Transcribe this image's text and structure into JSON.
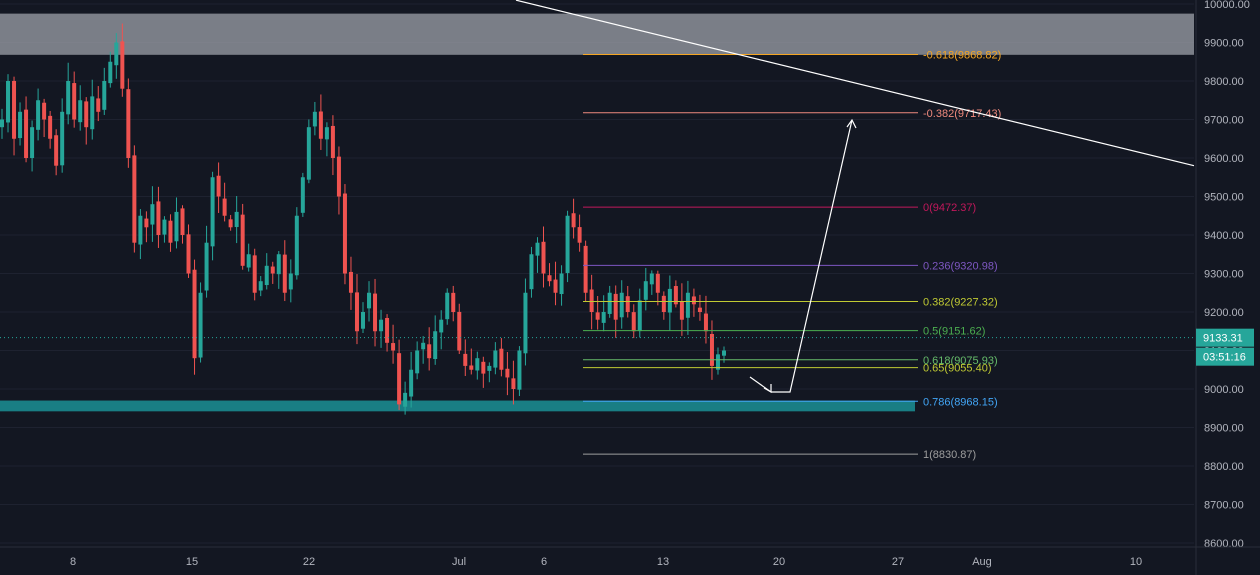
{
  "chart_data": {
    "type": "candlestick",
    "title": "",
    "ylim": [
      8600,
      10000
    ],
    "y_ticks": [
      "10000.00",
      "9900.00",
      "9800.00",
      "9700.00",
      "9600.00",
      "9500.00",
      "9400.00",
      "9300.00",
      "9200.00",
      "9100.00",
      "9000.00",
      "8900.00",
      "8800.00",
      "8700.00",
      "8600.00"
    ],
    "x_labels": [
      "8",
      "15",
      "22",
      "Jul",
      "6",
      "13",
      "20",
      "27",
      "Aug",
      "10"
    ],
    "current_price": {
      "value": 9133.31,
      "label": "9133.31",
      "countdown": "03:51:16"
    },
    "fib_levels": [
      {
        "label": "-0.618(9868.82)",
        "value": 9868.82,
        "color": "#f5a623"
      },
      {
        "label": "-0.382(9717.43)",
        "value": 9717.43,
        "color": "#f08a7e"
      },
      {
        "label": "0(9472.37)",
        "value": 9472.37,
        "color": "#c2185b"
      },
      {
        "label": "0.236(9320.98)",
        "value": 9320.98,
        "color": "#7e57c2"
      },
      {
        "label": "0.382(9227.32)",
        "value": 9227.32,
        "color": "#c0ca33"
      },
      {
        "label": "0.5(9151.62)",
        "value": 9151.62,
        "color": "#4caf50"
      },
      {
        "label": "0.618(9075.93)",
        "value": 9075.93,
        "color": "#66bb6a"
      },
      {
        "label": "0.65(9055.40)",
        "value": 9055.4,
        "color": "#c0ca33"
      },
      {
        "label": "0.786(8968.15)",
        "value": 8968.15,
        "color": "#42a5f5"
      },
      {
        "label": "1(8830.87)",
        "value": 8830.87,
        "color": "#9e9e9e"
      }
    ],
    "resistance_zone": [
      9868,
      9975
    ],
    "support_zone": [
      8942,
      8970
    ],
    "trendline": {
      "from_value": 10010,
      "to_value": 9580
    },
    "series": [
      {
        "name": "",
        "ohlc_close": [
          9700,
          9800,
          9650,
          9720,
          9600,
          9680,
          9750,
          9700,
          9650,
          9580,
          9720,
          9800,
          9700,
          9750,
          9680,
          9760,
          9720,
          9800,
          9850,
          9900,
          9780,
          9600,
          9380,
          9450,
          9420,
          9480,
          9400,
          9440,
          9380,
          9460,
          9400,
          9300,
          9080,
          9250,
          9380,
          9550,
          9500,
          9450,
          9420,
          9460,
          9320,
          9350,
          9250,
          9280,
          9320,
          9300,
          9350,
          9250,
          9300,
          9450,
          9550,
          9680,
          9720,
          9650,
          9680,
          9600,
          9500,
          9300,
          9250,
          9150,
          9200,
          9250,
          9150,
          9180,
          9120,
          9100,
          8960,
          8990,
          9050,
          9100,
          9120,
          9080,
          9150,
          9180,
          9250,
          9200,
          9100,
          9060,
          9050,
          9080,
          9040,
          9060,
          9100,
          9050,
          9030,
          9000,
          9100,
          9250,
          9350,
          9380,
          9300,
          9280,
          9250,
          9300,
          9450,
          9420,
          9380,
          9250,
          9200,
          9180,
          9200,
          9250,
          9180,
          9250,
          9200,
          9150,
          9230,
          9280,
          9300,
          9250,
          9200,
          9260,
          9220,
          9180,
          9250,
          9220,
          9200,
          9150,
          9060,
          9090,
          9100
        ]
      }
    ]
  }
}
